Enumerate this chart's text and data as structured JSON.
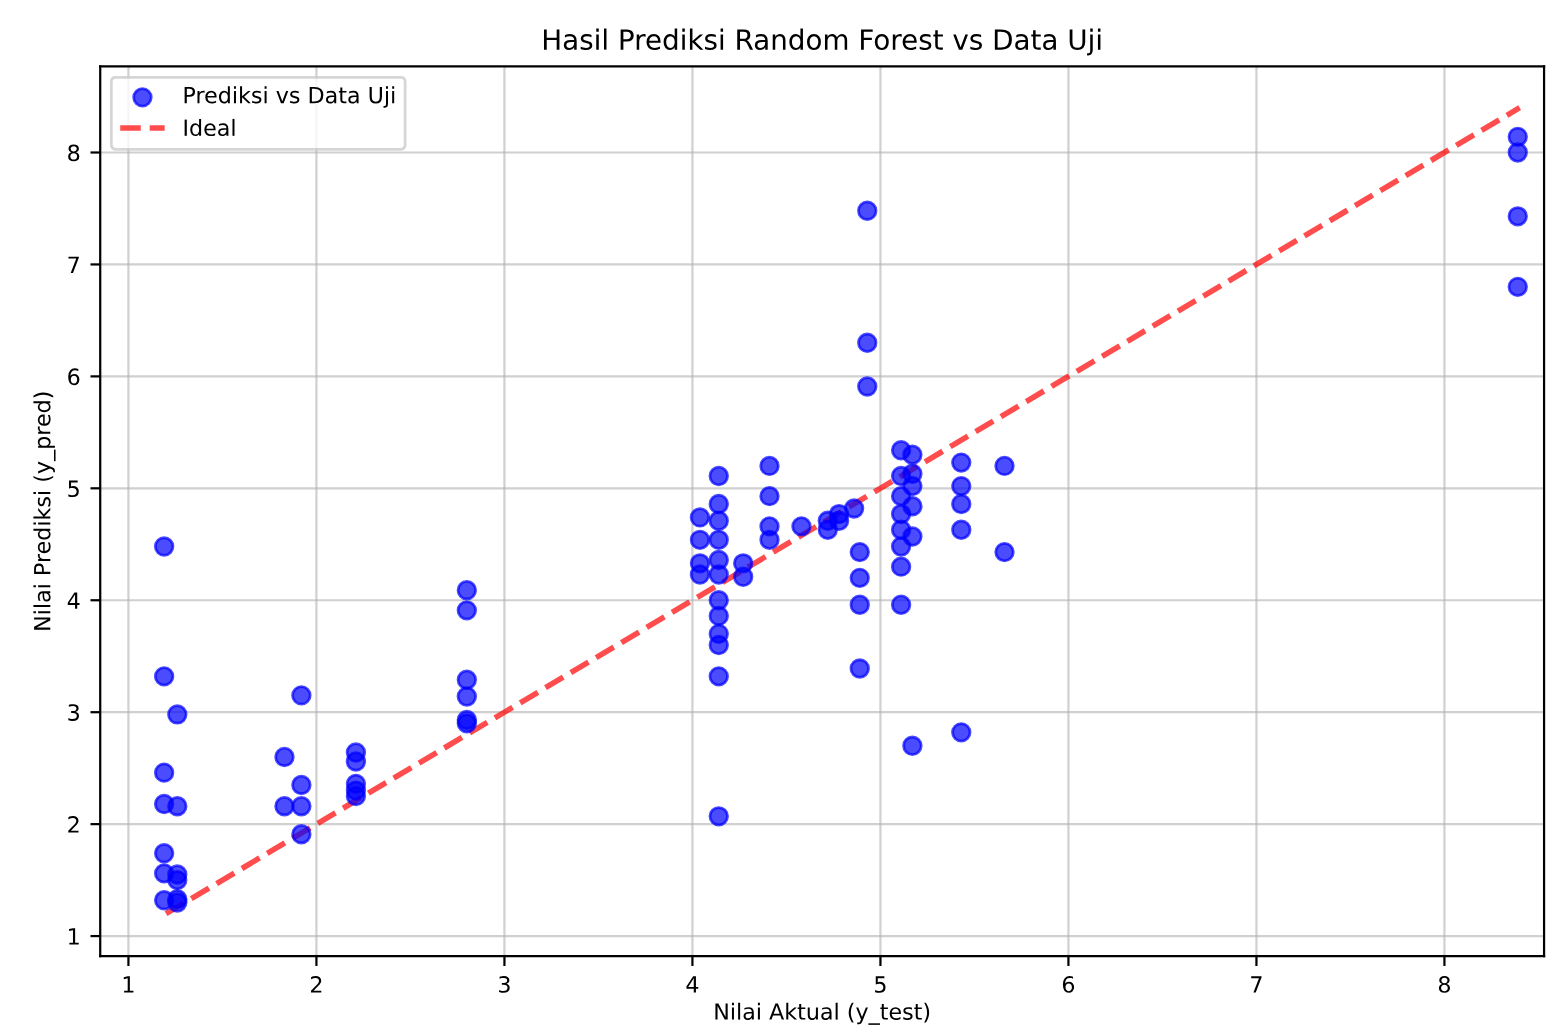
{
  "chart_data": {
    "type": "scatter",
    "title": "Hasil Prediksi Random Forest vs Data Uji",
    "xlabel": "Nilai Aktual (y_test)",
    "ylabel": "Nilai Prediksi (y_pred)",
    "xlim": [
      0.85,
      8.53
    ],
    "ylim": [
      0.82,
      8.77
    ],
    "xticks": [
      1,
      2,
      3,
      4,
      5,
      6,
      7,
      8
    ],
    "yticks": [
      1,
      2,
      3,
      4,
      5,
      6,
      7,
      8
    ],
    "grid": true,
    "legend": "top left",
    "marker": "circle",
    "series": [
      {
        "name": "Prediksi vs Data Uji",
        "color": "#0000ff",
        "x": [
          1.19,
          1.19,
          1.19,
          1.19,
          1.19,
          1.19,
          1.19,
          1.26,
          1.26,
          1.26,
          1.26,
          1.26,
          1.26,
          1.83,
          1.83,
          1.92,
          1.92,
          1.92,
          1.92,
          2.21,
          2.21,
          2.21,
          2.21,
          2.21,
          2.8,
          2.8,
          2.8,
          2.8,
          2.8,
          2.8,
          4.14,
          4.14,
          4.14,
          4.14,
          4.14,
          4.14,
          4.14,
          4.14,
          4.14,
          4.14,
          4.14,
          4.14,
          4.04,
          4.04,
          4.04,
          4.04,
          4.27,
          4.27,
          4.41,
          4.41,
          4.41,
          4.41,
          4.58,
          4.72,
          4.72,
          4.78,
          4.78,
          4.86,
          4.89,
          4.89,
          4.89,
          4.89,
          4.93,
          4.93,
          4.93,
          5.11,
          5.11,
          5.11,
          5.11,
          5.11,
          5.11,
          5.11,
          5.11,
          5.17,
          5.17,
          5.17,
          5.17,
          5.17,
          5.17,
          5.43,
          5.43,
          5.43,
          5.43,
          5.43,
          5.66,
          5.66,
          8.39,
          8.39,
          8.39,
          8.39
        ],
        "values": [
          4.48,
          3.32,
          2.46,
          2.18,
          1.74,
          1.56,
          1.32,
          2.98,
          2.16,
          1.55,
          1.5,
          1.33,
          1.3,
          2.6,
          2.16,
          3.15,
          2.35,
          2.16,
          1.91,
          2.64,
          2.56,
          2.36,
          2.3,
          2.25,
          4.09,
          3.91,
          3.29,
          3.14,
          2.93,
          2.9,
          5.11,
          4.86,
          4.71,
          4.54,
          4.36,
          4.23,
          4.0,
          3.86,
          3.7,
          3.6,
          3.32,
          2.07,
          4.74,
          4.54,
          4.33,
          4.23,
          4.33,
          4.21,
          5.2,
          4.93,
          4.66,
          4.54,
          4.66,
          4.71,
          4.63,
          4.71,
          4.77,
          4.82,
          4.43,
          4.2,
          3.96,
          3.39,
          7.48,
          6.3,
          5.91,
          5.34,
          5.11,
          4.93,
          4.77,
          4.63,
          4.48,
          4.3,
          3.96,
          5.3,
          5.13,
          5.02,
          4.84,
          4.57,
          2.7,
          5.23,
          5.02,
          4.86,
          4.63,
          2.82,
          5.2,
          4.43,
          8.14,
          8.0,
          7.43,
          6.8
        ]
      },
      {
        "name": "Ideal",
        "type": "line",
        "color": "#ff0000",
        "line_style": "dashed",
        "marker": "none",
        "x": [
          1.2,
          8.4
        ],
        "values": [
          1.2,
          8.4
        ]
      }
    ]
  }
}
